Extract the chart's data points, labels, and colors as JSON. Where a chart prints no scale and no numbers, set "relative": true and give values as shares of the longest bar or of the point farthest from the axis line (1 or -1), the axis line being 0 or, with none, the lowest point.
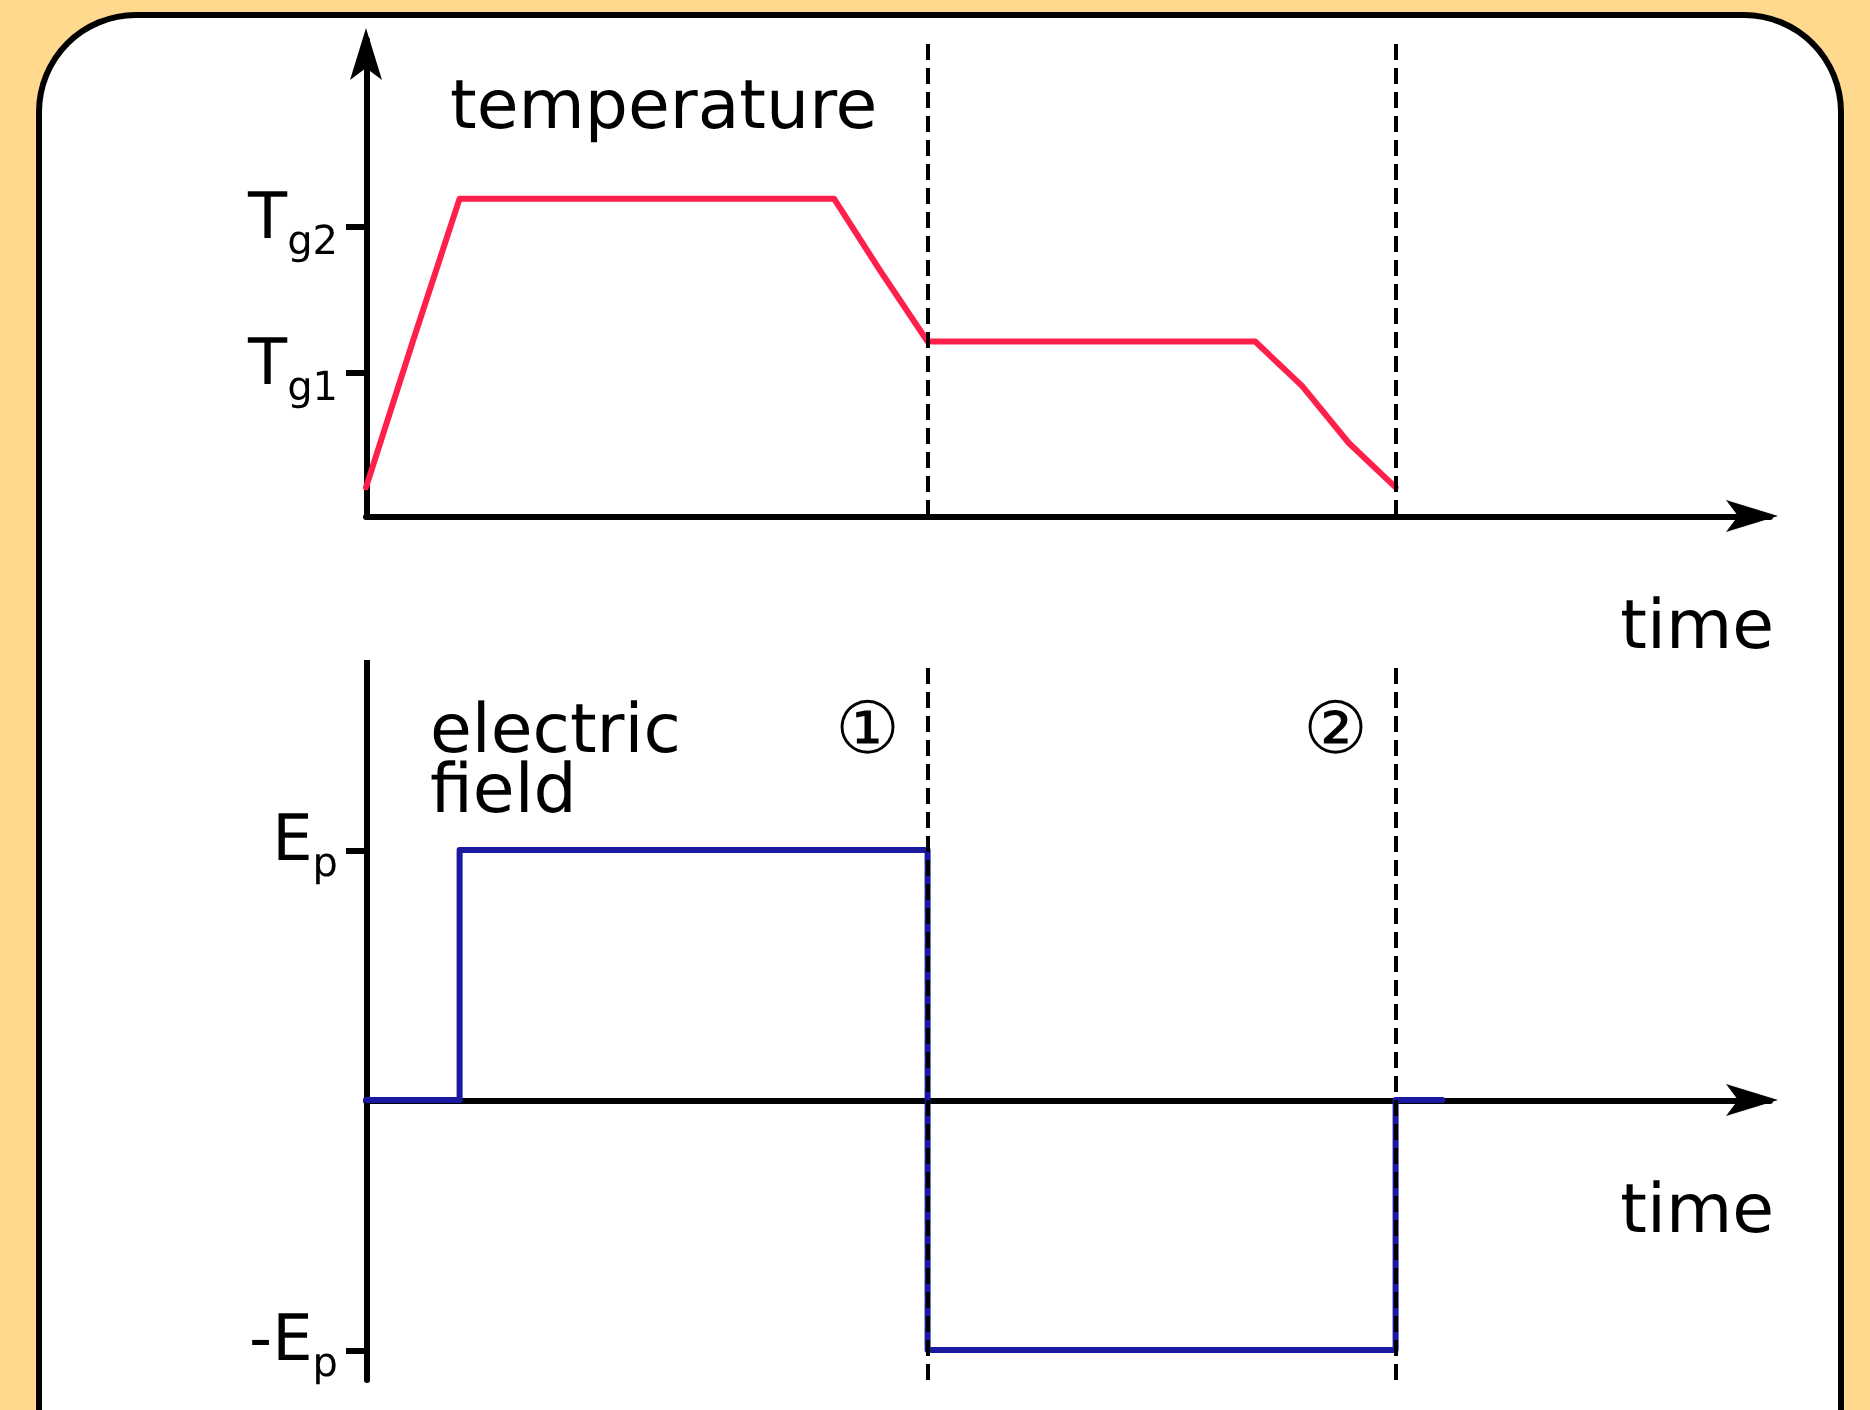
{
  "chart_data": [
    {
      "type": "line",
      "relative": true,
      "ylabel": "temperature",
      "xlabel": "time",
      "tick_labels": "y",
      "grid": false,
      "marker": "none",
      "line_style": "solid",
      "categories": [
        null,
        null,
        null,
        null,
        null,
        null,
        null,
        null,
        null,
        null,
        null,
        null,
        null,
        null,
        null,
        null,
        null,
        null,
        null,
        null,
        null,
        null,
        null,
        null,
        null,
        null,
        null,
        null,
        null,
        null,
        null
      ],
      "annotations": [
        "T$_{g1}$",
        "T$_{g2}$"
      ],
      "series": [
        {
          "color": "#ff1f4b",
          "values": [
            0.09,
            0.55,
            1,
            1,
            1,
            1,
            1,
            1,
            1,
            1,
            1,
            0.77,
            0.55,
            0.55,
            0.55,
            0.55,
            0.55,
            0.55,
            0.55,
            0.55,
            0.41,
            0.23,
            0.09,
            null,
            null,
            null,
            null,
            null,
            null,
            null,
            null
          ]
        }
      ]
    },
    {
      "type": "step",
      "relative": true,
      "ylabel": "electric field",
      "xlabel": "time",
      "tick_labels": "y",
      "grid": false,
      "marker": "none",
      "line_style": "solid",
      "categories": [
        null,
        null,
        null,
        null,
        null,
        null,
        null,
        null,
        null,
        null,
        null,
        null,
        null,
        null,
        null,
        null,
        null,
        null,
        null,
        null,
        null,
        null,
        null,
        null,
        null,
        null,
        null,
        null,
        null,
        null,
        null
      ],
      "series": [
        {
          "color": "#1a1aa0",
          "values": [
            0,
            0,
            0,
            1,
            1,
            1,
            1,
            1,
            1,
            1,
            1,
            1,
            1,
            -1,
            -1,
            -1,
            -1,
            -1,
            -1,
            -1,
            -1,
            -1,
            -1,
            0,
            null,
            null,
            null,
            null,
            null,
            null,
            null
          ]
        }
      ],
      "annotations": [
        "E$_{p}$",
        "-E$_{p}$",
        "①",
        "②"
      ]
    }
  ]
}
